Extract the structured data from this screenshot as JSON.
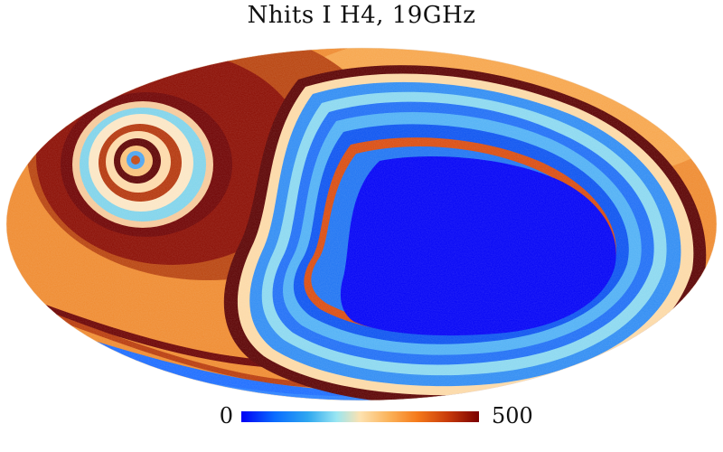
{
  "title": "Nhits I H4, 19GHz",
  "colorbar": {
    "min_label": "0",
    "max_label": "500",
    "min": 0,
    "max": 500,
    "colormap": [
      "#0000f5",
      "#0a6cff",
      "#2ea7f0",
      "#99e6f2",
      "#fde2b0",
      "#fbb35a",
      "#f57a1a",
      "#c83a0a",
      "#7a0000"
    ]
  },
  "map_regions": {
    "background_color": "#ef8a2e",
    "hole_color": "#0000f5"
  }
}
